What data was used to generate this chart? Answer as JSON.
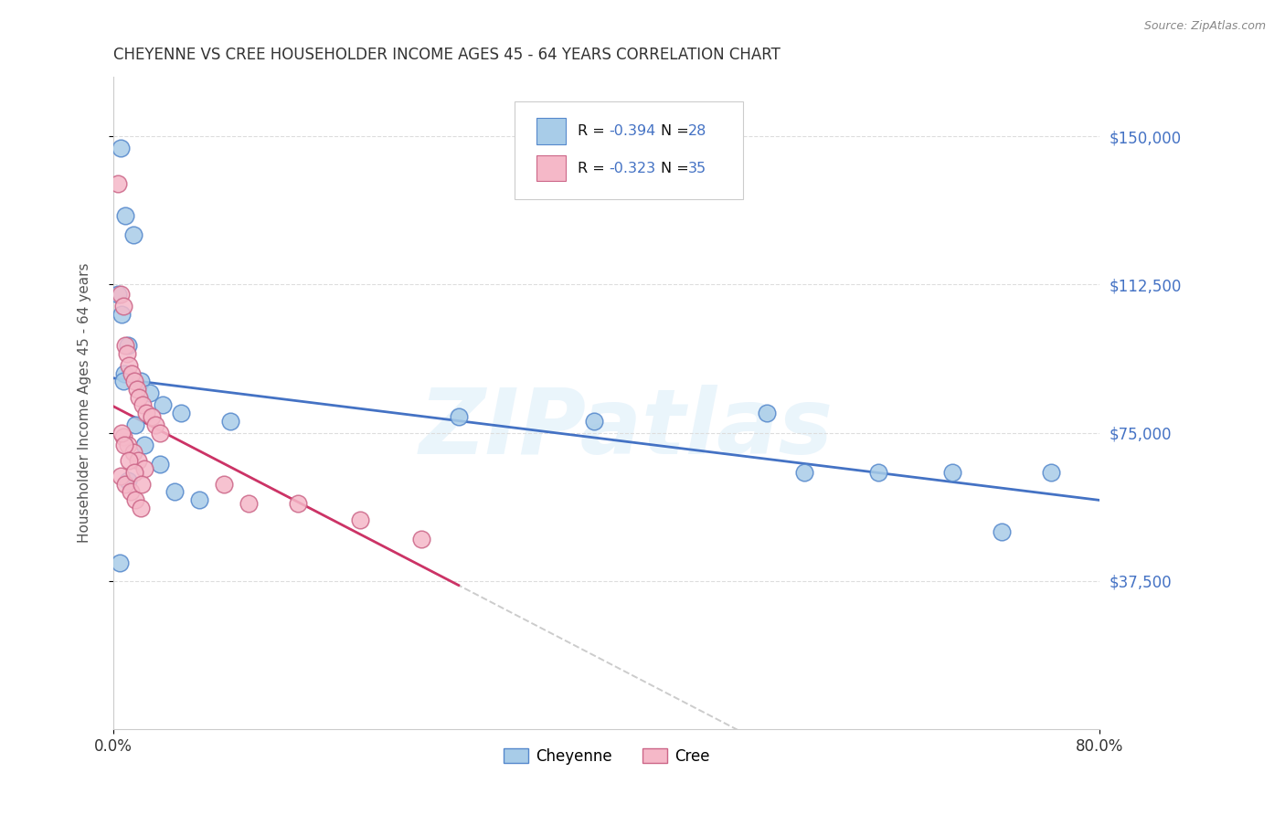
{
  "title": "CHEYENNE VS CREE HOUSEHOLDER INCOME AGES 45 - 64 YEARS CORRELATION CHART",
  "source": "Source: ZipAtlas.com",
  "ylabel_label": "Householder Income Ages 45 - 64 years",
  "xmin": 0.0,
  "xmax": 0.8,
  "ymin": 0,
  "ymax": 165000,
  "ytick_values": [
    37500,
    75000,
    112500,
    150000
  ],
  "ytick_labels": [
    "$37,500",
    "$75,000",
    "$112,500",
    "$150,000"
  ],
  "xtick_values": [
    0.0,
    0.8
  ],
  "xtick_labels": [
    "0.0%",
    "80.0%"
  ],
  "watermark": "ZIPatlas",
  "cheyenne_face_color": "#a8cce8",
  "cree_face_color": "#f5b8c8",
  "cheyenne_edge_color": "#5588cc",
  "cree_edge_color": "#cc6688",
  "cheyenne_line_color": "#4472c4",
  "cree_line_color": "#cc3366",
  "axis_tick_color": "#4472c4",
  "r_color": "#4472c4",
  "n_color": "#4472c4",
  "cheyenne_x": [
    0.006,
    0.01,
    0.016,
    0.004,
    0.007,
    0.012,
    0.009,
    0.008,
    0.022,
    0.03,
    0.04,
    0.055,
    0.018,
    0.025,
    0.038,
    0.012,
    0.05,
    0.07,
    0.095,
    0.28,
    0.39,
    0.53,
    0.56,
    0.62,
    0.68,
    0.72,
    0.76,
    0.005
  ],
  "cheyenne_y": [
    147000,
    130000,
    125000,
    110000,
    105000,
    97000,
    90000,
    88000,
    88000,
    85000,
    82000,
    80000,
    77000,
    72000,
    67000,
    63000,
    60000,
    58000,
    78000,
    79000,
    78000,
    80000,
    65000,
    65000,
    65000,
    50000,
    65000,
    42000
  ],
  "cree_x": [
    0.004,
    0.006,
    0.008,
    0.01,
    0.011,
    0.013,
    0.015,
    0.017,
    0.019,
    0.021,
    0.024,
    0.027,
    0.031,
    0.034,
    0.038,
    0.008,
    0.012,
    0.016,
    0.02,
    0.025,
    0.006,
    0.01,
    0.014,
    0.018,
    0.022,
    0.007,
    0.009,
    0.013,
    0.017,
    0.023,
    0.09,
    0.11,
    0.15,
    0.2,
    0.25
  ],
  "cree_y": [
    138000,
    110000,
    107000,
    97000,
    95000,
    92000,
    90000,
    88000,
    86000,
    84000,
    82000,
    80000,
    79000,
    77000,
    75000,
    74000,
    72000,
    70000,
    68000,
    66000,
    64000,
    62000,
    60000,
    58000,
    56000,
    75000,
    72000,
    68000,
    65000,
    62000,
    62000,
    57000,
    57000,
    53000,
    48000
  ]
}
